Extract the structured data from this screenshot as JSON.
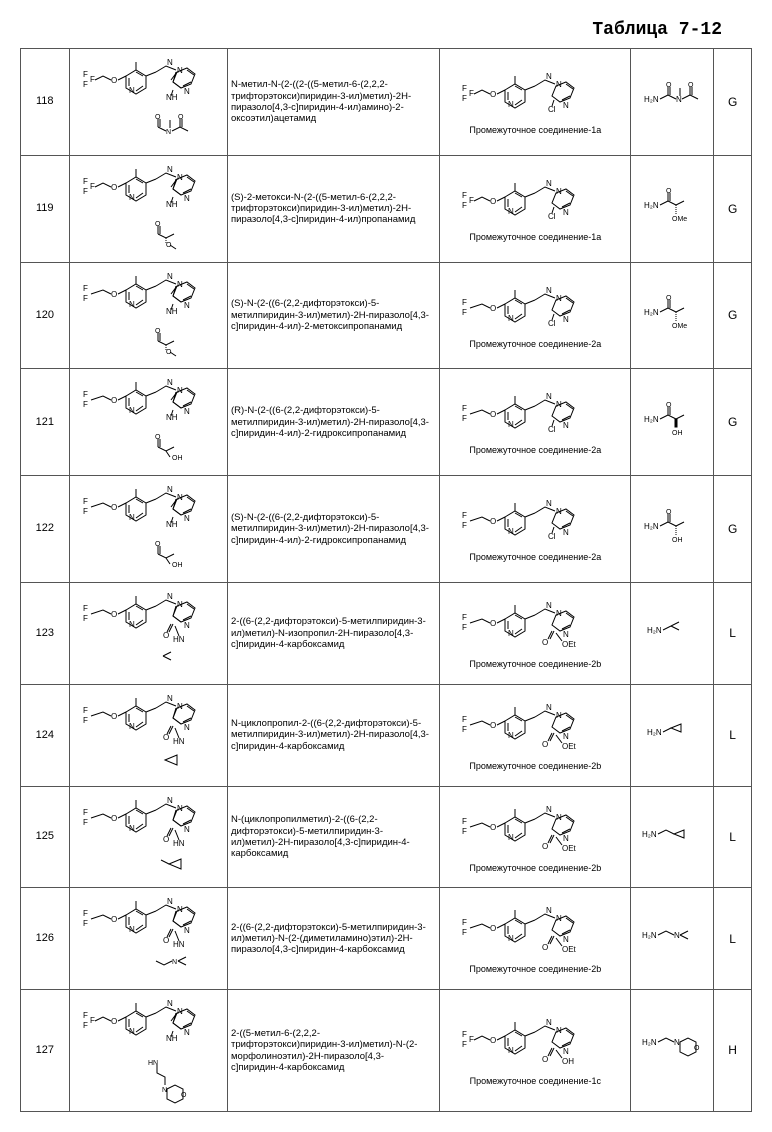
{
  "title": "Таблица 7-12",
  "rows": [
    {
      "id": "118",
      "name": "N-метил-N-(2-((2-((5-метил-6-(2,2,2-трифторэтокси)пиридин-3-ил)метил)-2H-пиразоло[4,3-c]пиридин-4-ил)амино)-2-оксоэтил)ацетамид",
      "intermediate": "Промежуточное соединение-1a",
      "method": "G"
    },
    {
      "id": "119",
      "name": "(S)-2-метокси-N-(2-((5-метил-6-(2,2,2-трифторэтокси)пиридин-3-ил)метил)-2H-пиразоло[4,3-c]пиридин-4-ил)пропанамид",
      "intermediate": "Промежуточное соединение-1a",
      "method": "G"
    },
    {
      "id": "120",
      "name": "(S)-N-(2-((6-(2,2-дифторэтокси)-5-метилпиридин-3-ил)метил)-2H-пиразоло[4,3-c]пиридин-4-ил)-2-метоксипропанамид",
      "intermediate": "Промежуточное соединение-2a",
      "method": "G"
    },
    {
      "id": "121",
      "name": "(R)-N-(2-((6-(2,2-дифторэтокси)-5-метилпиридин-3-ил)метил)-2H-пиразоло[4,3-c]пиридин-4-ил)-2-гидроксипропанамид",
      "intermediate": "Промежуточное соединение-2a",
      "method": "G"
    },
    {
      "id": "122",
      "name": "(S)-N-(2-((6-(2,2-дифторэтокси)-5-метилпиридин-3-ил)метил)-2H-пиразоло[4,3-c]пиридин-4-ил)-2-гидроксипропанамид",
      "intermediate": "Промежуточное соединение-2a",
      "method": "G"
    },
    {
      "id": "123",
      "name": "2-((6-(2,2-дифторэтокси)-5-метилпиридин-3-ил)метил)-N-изопропил-2H-пиразоло[4,3-c]пиридин-4-карбоксамид",
      "intermediate": "Промежуточное соединение-2b",
      "method": "L"
    },
    {
      "id": "124",
      "name": "N-циклопропил-2-((6-(2,2-дифторэтокси)-5-метилпиридин-3-ил)метил)-2H-пиразоло[4,3-c]пиридин-4-карбоксамид",
      "intermediate": "Промежуточное соединение-2b",
      "method": "L"
    },
    {
      "id": "125",
      "name": "N-(циклопропилметил)-2-((6-(2,2-дифторэтокси)-5-метилпиридин-3-ил)метил)-2H-пиразоло[4,3-c]пиридин-4-карбоксамид",
      "intermediate": "Промежуточное соединение-2b",
      "method": "L"
    },
    {
      "id": "126",
      "name": "2-((6-(2,2-дифторэтокси)-5-метилпиридин-3-ил)метил)-N-(2-(диметиламино)этил)-2H-пиразоло[4,3-c]пиридин-4-карбоксамид",
      "intermediate": "Промежуточное соединение-2b",
      "method": "L"
    },
    {
      "id": "127",
      "name": "2-((5-метил-6-(2,2,2-трифторэтокси)пиридин-3-ил)метил)-N-(2-морфолиноэтил)-2H-пиразоло[4,3-c]пиридин-4-карбоксамид",
      "intermediate": "Промежуточное соединение-1c",
      "method": "H"
    }
  ],
  "svgs": {
    "mainCoreCF3_NH": "<svg class='chem-svg' width='135' height='70' viewBox='0 0 135 70'><g stroke='#000' stroke-width='1' fill='none'><text x='2' y='25' font-size='8' fill='#000' stroke='none'>F</text><text x='2' y='35' font-size='8' fill='#000' stroke='none'>F</text><text x='9' y='30' font-size='8' fill='#000' stroke='none'>F</text><path d='M14 28 L22 24 L30 28'/><text x='30' y='31' font-size='8' fill='#000' stroke='none'>O</text><path d='M37 28 L45 24'/><polygon points='45,24 55,18 65,24 65,36 55,42 45,36' fill='none'/><path d='M48 26 L48 34 M55 20 L62 24 M62 34 L55 39'/><text x='48' y='41' font-size='8' fill='#000' stroke='none'>N</text><path d='M55 18 L55 10'/><path d='M65 24 L75 20'/><path d='M75 20 L85 14 L95 18'/><text x='86' y='13' font-size='8' fill='#000' stroke='none'>N</text><text x='96' y='21' font-size='8' fill='#000' stroke='none'>N</text><path d='M95 20 L92 30 L100 36'/><polygon points='92,30 100,36 110,32 114,22 106,16 96,20' fill='none'/><path d='M102 34 L110 30 M106 18 L113 23'/><text x='103' y='42' font-size='8' fill='#000' stroke='none'>N</text><path d='M96 20 L90 28'/><text x='85' y='48' font-size='8' fill='#000' stroke='none'>NH</text><path d='M92 38 L90 44'/></g></svg>",
    "mainCoreCHF2_NH": "<svg class='chem-svg' width='135' height='70' viewBox='0 0 135 70'><g stroke='#000' stroke-width='1' fill='none'><text x='2' y='25' font-size='8' fill='#000' stroke='none'>F</text><text x='2' y='35' font-size='8' fill='#000' stroke='none'>F</text><path d='M10 28 L22 24 L30 28'/><text x='30' y='31' font-size='8' fill='#000' stroke='none'>O</text><path d='M37 28 L45 24'/><polygon points='45,24 55,18 65,24 65,36 55,42 45,36' fill='none'/><path d='M48 26 L48 34 M55 20 L62 24 M62 34 L55 39'/><text x='48' y='41' font-size='8' fill='#000' stroke='none'>N</text><path d='M55 18 L55 10'/><path d='M65 24 L75 20'/><path d='M75 20 L85 14 L95 18'/><text x='86' y='13' font-size='8' fill='#000' stroke='none'>N</text><text x='96' y='21' font-size='8' fill='#000' stroke='none'>N</text><path d='M95 20 L92 30 L100 36'/><polygon points='92,30 100,36 110,32 114,22 106,16 96,20' fill='none'/><path d='M102 34 L110 30 M106 18 L113 23'/><text x='103' y='42' font-size='8' fill='#000' stroke='none'>N</text><path d='M96 20 L90 28'/><text x='85' y='48' font-size='8' fill='#000' stroke='none'>NH</text><path d='M92 38 L90 44'/></g></svg>",
    "mainCoreCHF2_CO": "<svg class='chem-svg' width='135' height='70' viewBox='0 0 135 70'><g stroke='#000' stroke-width='1' fill='none'><text x='2' y='25' font-size='8' fill='#000' stroke='none'>F</text><text x='2' y='35' font-size='8' fill='#000' stroke='none'>F</text><path d='M10 28 L22 24 L30 28'/><text x='30' y='31' font-size='8' fill='#000' stroke='none'>O</text><path d='M37 28 L45 24'/><polygon points='45,24 55,18 65,24 65,36 55,42 45,36' fill='none'/><path d='M48 26 L48 34 M55 20 L62 24 M62 34 L55 39'/><text x='48' y='41' font-size='8' fill='#000' stroke='none'>N</text><path d='M55 18 L55 10'/><path d='M65 24 L75 20'/><path d='M75 20 L85 14 L95 18'/><text x='86' y='13' font-size='8' fill='#000' stroke='none'>N</text><text x='96' y='21' font-size='8' fill='#000' stroke='none'>N</text><path d='M95 20 L92 30 L100 36'/><polygon points='92,30 100,36 110,32 114,22 106,16 96,20' fill='none'/><path d='M102 34 L110 30 M106 18 L113 23'/><text x='103' y='42' font-size='8' fill='#000' stroke='none'>N</text><path d='M92 38 L88 46 M90 38 L86 46'/><text x='82' y='52' font-size='8' fill='#000' stroke='none'>O</text><text x='92' y='56' font-size='8' fill='#000' stroke='none'>HN</text><path d='M94 40 L98 50'/></g></svg>",
    "interCl_CF3": "<svg class='chem-svg' width='150' height='55' viewBox='0 0 150 55'><g stroke='#000' stroke-width='1' fill='none'><text x='2' y='23' font-size='8' fill='#000' stroke='none'>F</text><text x='2' y='33' font-size='8' fill='#000' stroke='none'>F</text><text x='9' y='28' font-size='8' fill='#000' stroke='none'>F</text><path d='M14 26 L22 22 L30 26'/><text x='30' y='29' font-size='8' fill='#000' stroke='none'>O</text><path d='M37 26 L45 22'/><polygon points='45,22 55,16 65,22 65,34 55,40 45,34' fill='none'/><path d='M48 24 L48 32 M55 18 L62 22 M62 32 L55 37'/><text x='48' y='39' font-size='8' fill='#000' stroke='none'>N</text><path d='M55 16 L55 8'/><path d='M65 22 L75 18'/><path d='M75 18 L85 12 L95 16'/><text x='86' y='11' font-size='8' fill='#000' stroke='none'>N</text><text x='96' y='19' font-size='8' fill='#000' stroke='none'>N</text><polygon points='92,28 100,34 110,30 114,20 106,14 96,18' fill='none'/><path d='M102 32 L110 28 M106 16 L113 21'/><text x='103' y='40' font-size='8' fill='#000' stroke='none'>N</text><text x='88' y='44' font-size='8' fill='#000' stroke='none'>Cl</text><path d='M94 32 L92 38'/></g></svg>",
    "interCl_CHF2": "<svg class='chem-svg' width='150' height='55' viewBox='0 0 150 55'><g stroke='#000' stroke-width='1' fill='none'><text x='2' y='23' font-size='8' fill='#000' stroke='none'>F</text><text x='2' y='33' font-size='8' fill='#000' stroke='none'>F</text><path d='M10 26 L22 22 L30 26'/><text x='30' y='29' font-size='8' fill='#000' stroke='none'>O</text><path d='M37 26 L45 22'/><polygon points='45,22 55,16 65,22 65,34 55,40 45,34' fill='none'/><path d='M48 24 L48 32 M55 18 L62 22 M62 32 L55 37'/><text x='48' y='39' font-size='8' fill='#000' stroke='none'>N</text><path d='M55 16 L55 8'/><path d='M65 22 L75 18'/><path d='M75 18 L85 12 L95 16'/><text x='86' y='11' font-size='8' fill='#000' stroke='none'>N</text><text x='96' y='19' font-size='8' fill='#000' stroke='none'>N</text><polygon points='92,28 100,34 110,30 114,20 106,14 96,18' fill='none'/><path d='M102 32 L110 28 M106 16 L113 21'/><text x='103' y='40' font-size='8' fill='#000' stroke='none'>N</text><text x='88' y='44' font-size='8' fill='#000' stroke='none'>Cl</text><path d='M94 32 L92 38'/></g></svg>",
    "interOEt_CHF2": "<svg class='chem-svg' width='150' height='60' viewBox='0 0 150 60'><g stroke='#000' stroke-width='1' fill='none'><text x='2' y='23' font-size='8' fill='#000' stroke='none'>F</text><text x='2' y='33' font-size='8' fill='#000' stroke='none'>F</text><path d='M10 26 L22 22 L30 26'/><text x='30' y='29' font-size='8' fill='#000' stroke='none'>O</text><path d='M37 26 L45 22'/><polygon points='45,22 55,16 65,22 65,34 55,40 45,34' fill='none'/><path d='M48 24 L48 32 M55 18 L62 22 M62 32 L55 37'/><text x='48' y='39' font-size='8' fill='#000' stroke='none'>N</text><path d='M55 16 L55 8'/><path d='M65 22 L75 18'/><path d='M75 18 L85 12 L95 16'/><text x='86' y='11' font-size='8' fill='#000' stroke='none'>N</text><text x='96' y='19' font-size='8' fill='#000' stroke='none'>N</text><polygon points='92,28 100,34 110,30 114,20 106,14 96,18' fill='none'/><path d='M102 32 L110 28 M106 16 L113 21'/><text x='103' y='40' font-size='8' fill='#000' stroke='none'>N</text><path d='M94 34 L90 42 M92 34 L88 42'/><text x='82' y='48' font-size='8' fill='#000' stroke='none'>O</text><path d='M96 36 L102 44'/><text x='102' y='50' font-size='8' fill='#000' stroke='none'>OEt</text></g></svg>",
    "interOH_CF3": "<svg class='chem-svg' width='150' height='60' viewBox='0 0 150 60'><g stroke='#000' stroke-width='1' fill='none'><text x='2' y='23' font-size='8' fill='#000' stroke='none'>F</text><text x='2' y='33' font-size='8' fill='#000' stroke='none'>F</text><text x='9' y='28' font-size='8' fill='#000' stroke='none'>F</text><path d='M14 26 L22 22 L30 26'/><text x='30' y='29' font-size='8' fill='#000' stroke='none'>O</text><path d='M37 26 L45 22'/><polygon points='45,22 55,16 65,22 65,34 55,40 45,34' fill='none'/><path d='M48 24 L48 32 M55 18 L62 22 M62 32 L55 37'/><text x='48' y='39' font-size='8' fill='#000' stroke='none'>N</text><path d='M55 16 L55 8'/><path d='M65 22 L75 18'/><path d='M75 18 L85 12 L95 16'/><text x='86' y='11' font-size='8' fill='#000' stroke='none'>N</text><text x='96' y='19' font-size='8' fill='#000' stroke='none'>N</text><polygon points='92,28 100,34 110,30 114,20 106,14 96,18' fill='none'/><path d='M102 32 L110 28 M106 16 L113 21'/><text x='103' y='40' font-size='8' fill='#000' stroke='none'>N</text><path d='M94 34 L90 42 M92 34 L88 42'/><text x='82' y='48' font-size='8' fill='#000' stroke='none'>O</text><path d='M96 36 L102 44'/><text x='102' y='50' font-size='8' fill='#000' stroke='none'>OH</text></g></svg>",
    "r118": "<svg width='60' height='38'><g stroke='#000' stroke-width='1' fill='none'><text x='2' y='20' font-size='8' fill='#000' stroke='none'>H₂N</text><path d='M18 17 L26 13'/><path d='M26 13 L26 5 M28 13 L28 5'/><text x='24' y='5' font-size='7' fill='#000' stroke='none'>O</text><path d='M26 13 L34 17'/><text x='34' y='20' font-size='8' fill='#000' stroke='none'>N</text><path d='M38 14 L38 6'/><path d='M40 17 L48 13'/><path d='M48 13 L48 5 M50 13 L50 5'/><text x='46' y='5' font-size='7' fill='#000' stroke='none'>O</text><path d='M48 13 L56 17'/></g></svg>",
    "r119": "<svg width='60' height='38'><g stroke='#000' stroke-width='1' fill='none'><text x='2' y='20' font-size='8' fill='#000' stroke='none'>H₂N</text><path d='M18 17 L26 13'/><path d='M26 13 L26 5 M28 13 L28 5'/><text x='24' y='5' font-size='7' fill='#000' stroke='none'>O</text><path d='M26 13 L34 17'/><path d='M34 17 L42 13'/><path d='M34 17 L34 26' stroke-dasharray='1,1'/><text x='30' y='33' font-size='7' fill='#000' stroke='none'>OMe</text></g></svg>",
    "r120": "<svg width='60' height='38'><g stroke='#000' stroke-width='1' fill='none'><text x='2' y='20' font-size='8' fill='#000' stroke='none'>H₂N</text><path d='M18 17 L26 13'/><path d='M26 13 L26 5 M28 13 L28 5'/><text x='24' y='5' font-size='7' fill='#000' stroke='none'>O</text><path d='M26 13 L34 17'/><path d='M34 17 L42 13'/><path d='M34 17 L34 26' stroke-dasharray='1,1'/><text x='30' y='33' font-size='7' fill='#000' stroke='none'>OMe</text></g></svg>",
    "r121": "<svg width='60' height='38'><g stroke='#000' stroke-width='1' fill='none'><text x='2' y='20' font-size='8' fill='#000' stroke='none'>H₂N</text><path d='M18 17 L26 13'/><path d='M26 13 L26 5 M28 13 L28 5'/><text x='24' y='5' font-size='7' fill='#000' stroke='none'>O</text><path d='M26 13 L34 17'/><path d='M34 17 L42 13'/><polygon points='33,17 35,17 35,25 33,25' fill='#000'/><text x='30' y='33' font-size='7' fill='#000' stroke='none'>OH</text></g></svg>",
    "r122": "<svg width='60' height='38'><g stroke='#000' stroke-width='1' fill='none'><text x='2' y='20' font-size='8' fill='#000' stroke='none'>H₂N</text><path d='M18 17 L26 13'/><path d='M26 13 L26 5 M28 13 L28 5'/><text x='24' y='5' font-size='7' fill='#000' stroke='none'>O</text><path d='M26 13 L34 17'/><path d='M34 17 L42 13'/><path d='M34 17 L34 26' stroke-dasharray='1,1'/><text x='30' y='33' font-size='7' fill='#000' stroke='none'>OH</text></g></svg>",
    "r123": "<svg width='55' height='28'><g stroke='#000' stroke-width='1' fill='none'><text x='2' y='15' font-size='8' fill='#000' stroke='none'>H₂N</text><path d='M18 12 L26 8'/><path d='M26 8 L34 4 M26 8 L34 12'/></g></svg>",
    "r124": "<svg width='55' height='28'><g stroke='#000' stroke-width='1' fill='none'><text x='2' y='15' font-size='8' fill='#000' stroke='none'>H₂N</text><path d='M18 12 L26 8'/><polygon points='26,8 36,4 36,12'/></g></svg>",
    "r125": "<svg width='65' height='28'><g stroke='#000' stroke-width='1' fill='none'><text x='2' y='15' font-size='8' fill='#000' stroke='none'>H₂N</text><path d='M18 12 L26 8 L34 12'/><polygon points='34,12 44,8 44,16'/></g></svg>",
    "r126": "<svg width='65' height='28'><g stroke='#000' stroke-width='1' fill='none'><text x='2' y='15' font-size='8' fill='#000' stroke='none'>H₂N</text><path d='M18 12 L26 8 L34 12'/><text x='34' y='15' font-size='8' fill='#000' stroke='none'>N</text><path d='M40 12 L48 8 M40 12 L48 16'/></g></svg>",
    "r127": "<svg width='65' height='38'><g stroke='#000' stroke-width='1' fill='none'><text x='2' y='15' font-size='8' fill='#000' stroke='none'>H₂N</text><path d='M18 12 L26 8 L34 12'/><text x='34' y='15' font-size='8' fill='#000' stroke='none'>N</text><polygon points='40,12 48,8 56,12 56,22 48,26 40,22' /><text x='54' y='20' font-size='7' fill='#000' stroke='none'>O</text></g></svg>",
    "tail118": "<svg width='60' height='35'><g stroke='#000' fill='none'><path d='M10 5 L10 13 M12 5 L12 13'/><text x='7' y='5' font-size='7' fill='#000' stroke='none'>O</text><path d='M10 13 L18 17'/><text x='18' y='20' font-size='7' fill='#000' stroke='none'>N</text><path d='M22 14 L22 6'/><path d='M24 17 L32 13'/><path d='M32 13 L32 5 M34 13 L34 5'/><text x='30' y='5' font-size='7' fill='#000' stroke='none'>O</text><path d='M32 13 L40 17'/></g></svg>",
    "tail119": "<svg width='60' height='35'><g stroke='#000' fill='none'><path d='M10 5 L10 13 M12 5 L12 13'/><text x='7' y='5' font-size='7' fill='#000' stroke='none'>O</text><path d='M10 13 L18 17 L26 13'/><text x='18' y='26' font-size='7' fill='#000' stroke='none'>O</text><path d='M18 17 L18 22' stroke-dasharray='1,1'/><path d='M22 24 L28 28'/></g></svg>",
    "tail121": "<svg width='60' height='35'><g stroke='#000' fill='none'><path d='M10 5 L10 13 M12 5 L12 13'/><text x='7' y='5' font-size='7' fill='#000' stroke='none'>O</text><path d='M10 13 L18 17 L26 13'/><text x='24' y='26' font-size='7' fill='#000' stroke='none'>OH</text><path d='M18 17 L22 23'/></g></svg>",
    "tail123": "<svg width='50' height='30'><g stroke='#000' fill='none'><path d='M10 8 L18 4 M10 8 L18 12'/></g></svg>",
    "tail124": "<svg width='50' height='30'><g stroke='#000' fill='none'><polygon points='12,10 24,5 24,15'/></g></svg>",
    "tail125": "<svg width='50' height='30'><g stroke='#000' fill='none'><path d='M8 8 L16 12'/><polygon points='16,12 28,7 28,17'/></g></svg>",
    "tail126": "<svg width='60' height='30'><g stroke='#000' fill='none'><path d='M8 8 L16 12 L24 8'/><text x='24' y='11' font-size='7' fill='#000' stroke='none'>N</text><path d='M30 8 L38 4 M30 8 L38 12'/></g></svg>",
    "tail127": "<svg width='70' height='50'><g stroke='#000' fill='none'><text x='5' y='10' font-size='7' fill='#000' stroke='none'>HN</text><path d='M14 10 L14 18 L22 22 L22 30'/><text x='19' y='37' font-size='7' fill='#000' stroke='none'>N</text><polygon points='24,34 32,30 40,34 40,44 32,48 24,44'/><text x='38' y='42' font-size='7' fill='#000' stroke='none'>O</text></g></svg>"
  },
  "rowConfig": [
    {
      "main": "mainCoreCF3_NH",
      "tail": "tail118",
      "inter": "interCl_CF3",
      "reag": "r118"
    },
    {
      "main": "mainCoreCF3_NH",
      "tail": "tail119",
      "inter": "interCl_CF3",
      "reag": "r119"
    },
    {
      "main": "mainCoreCHF2_NH",
      "tail": "tail119",
      "inter": "interCl_CHF2",
      "reag": "r120"
    },
    {
      "main": "mainCoreCHF2_NH",
      "tail": "tail121",
      "inter": "interCl_CHF2",
      "reag": "r121"
    },
    {
      "main": "mainCoreCHF2_NH",
      "tail": "tail121",
      "inter": "interCl_CHF2",
      "reag": "r122"
    },
    {
      "main": "mainCoreCHF2_CO",
      "tail": "tail123",
      "inter": "interOEt_CHF2",
      "reag": "r123"
    },
    {
      "main": "mainCoreCHF2_CO",
      "tail": "tail124",
      "inter": "interOEt_CHF2",
      "reag": "r124"
    },
    {
      "main": "mainCoreCHF2_CO",
      "tail": "tail125",
      "inter": "interOEt_CHF2",
      "reag": "r125"
    },
    {
      "main": "mainCoreCHF2_CO",
      "tail": "tail126",
      "inter": "interOEt_CHF2",
      "reag": "r126"
    },
    {
      "main": "mainCoreCF3_NH",
      "tail": "tail127",
      "inter": "interOH_CF3",
      "reag": "r127"
    }
  ]
}
